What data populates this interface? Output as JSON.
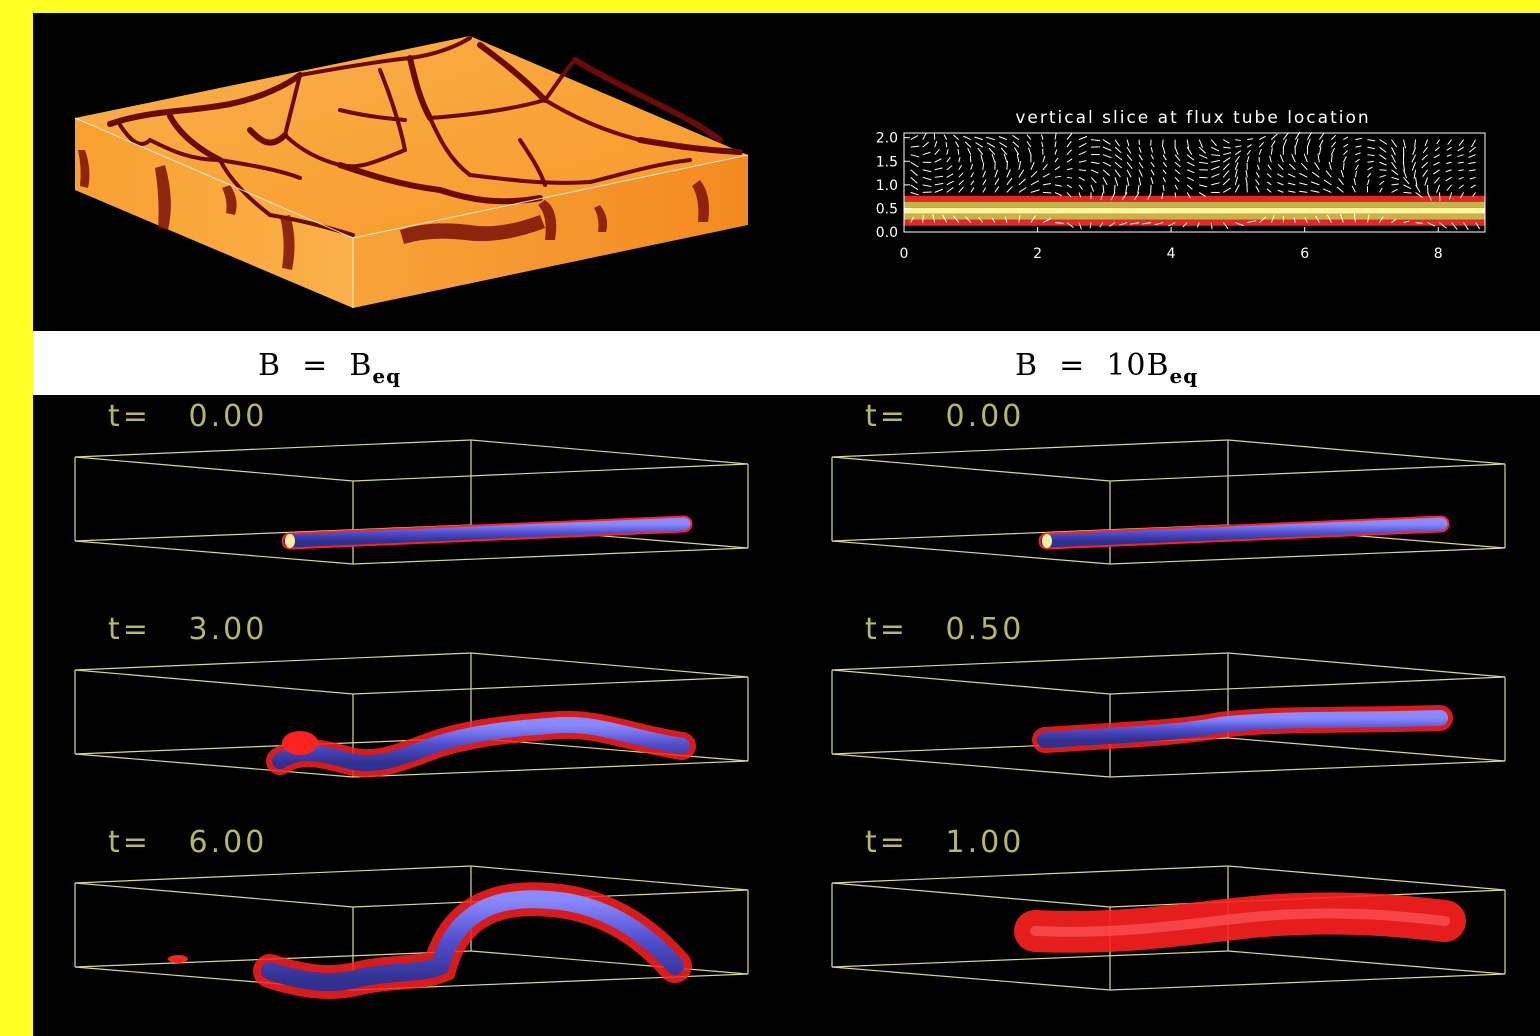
{
  "slice_plot": {
    "title": "vertical slice at flux tube location",
    "xticks": [
      "0",
      "2",
      "4",
      "6",
      "8"
    ],
    "yticks": [
      "2.0",
      "1.5",
      "1.0",
      "0.5",
      "0.0"
    ],
    "xlim": [
      0,
      8.7
    ],
    "ylim": [
      0,
      2.1
    ],
    "band_center": 0.45,
    "band_colors": [
      "#ff2a2a",
      "#d9c850",
      "#fff4a0",
      "#d9c850",
      "#ff2a2a"
    ]
  },
  "cases": {
    "left": {
      "label_prefix": "B  =  B",
      "label_sub": "eq"
    },
    "right": {
      "label_prefix": "B  =  10B",
      "label_sub": "eq"
    }
  },
  "time_labels": {
    "left": [
      "t=   0.00",
      "t=   3.00",
      "t=   6.00"
    ],
    "right": [
      "t=   0.00",
      "t=   0.50",
      "t=   1.00"
    ]
  },
  "colors": {
    "frame": "#ffff22",
    "box_edges": "#d8d890",
    "tube_blue": "#5a5adc",
    "tube_red": "#ff2020",
    "surface_orange": "#f59a2a",
    "lane_dark": "#6a0a0a"
  }
}
